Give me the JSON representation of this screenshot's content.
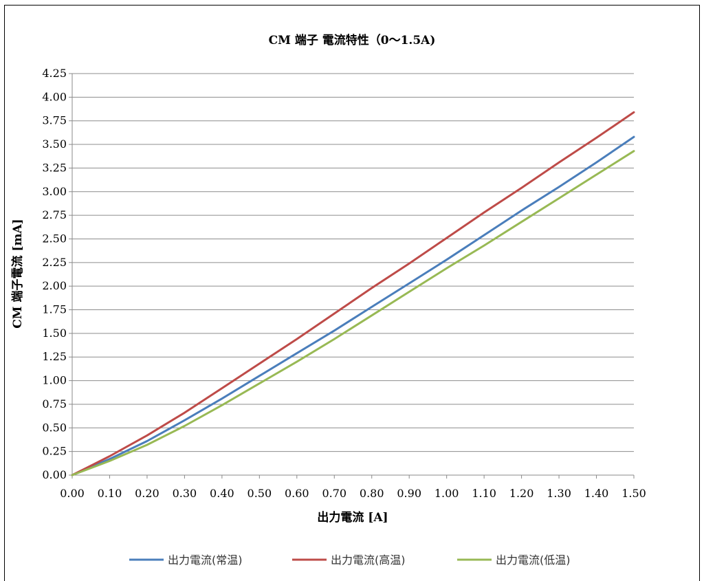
{
  "chart_data": {
    "type": "line",
    "title": "CM 端子 電流特性（0～1.5A)",
    "xlabel": "出力電流 [A]",
    "ylabel": "CM 端子電流 [mA]",
    "xlim": [
      0,
      1.5
    ],
    "ylim": [
      0,
      4.25
    ],
    "xticks": [
      "0.00",
      "0.10",
      "0.20",
      "0.30",
      "0.40",
      "0.50",
      "0.60",
      "0.70",
      "0.80",
      "0.90",
      "1.00",
      "1.10",
      "1.20",
      "1.30",
      "1.40",
      "1.50"
    ],
    "yticks": [
      "0.00",
      "0.25",
      "0.50",
      "0.75",
      "1.00",
      "1.25",
      "1.50",
      "1.75",
      "2.00",
      "2.25",
      "2.50",
      "2.75",
      "3.00",
      "3.25",
      "3.50",
      "3.75",
      "4.00",
      "4.25"
    ],
    "grid": true,
    "legend_position": "bottom",
    "series": [
      {
        "name": "出力電流(常温)",
        "color": "#4a7ebb",
        "x": [
          0,
          0.1,
          0.2,
          0.3,
          0.4,
          0.5,
          0.6,
          0.7,
          0.8,
          0.9,
          1.0,
          1.1,
          1.2,
          1.3,
          1.4,
          1.5
        ],
        "y": [
          0,
          0.17,
          0.36,
          0.58,
          0.81,
          1.05,
          1.29,
          1.53,
          1.78,
          2.03,
          2.28,
          2.54,
          2.8,
          3.05,
          3.31,
          3.58
        ]
      },
      {
        "name": "出力電流(高温)",
        "color": "#be4b48",
        "x": [
          0,
          0.1,
          0.2,
          0.3,
          0.4,
          0.5,
          0.6,
          0.7,
          0.8,
          0.9,
          1.0,
          1.1,
          1.2,
          1.3,
          1.4,
          1.5
        ],
        "y": [
          0,
          0.2,
          0.42,
          0.66,
          0.92,
          1.18,
          1.44,
          1.71,
          1.98,
          2.24,
          2.51,
          2.78,
          3.04,
          3.31,
          3.57,
          3.84
        ]
      },
      {
        "name": "出力電流(低温)",
        "color": "#98b954",
        "x": [
          0,
          0.1,
          0.2,
          0.3,
          0.4,
          0.5,
          0.6,
          0.7,
          0.8,
          0.9,
          1.0,
          1.1,
          1.2,
          1.3,
          1.4,
          1.5
        ],
        "y": [
          0,
          0.15,
          0.32,
          0.52,
          0.74,
          0.97,
          1.2,
          1.44,
          1.69,
          1.94,
          2.19,
          2.43,
          2.68,
          2.93,
          3.18,
          3.43
        ]
      }
    ]
  }
}
